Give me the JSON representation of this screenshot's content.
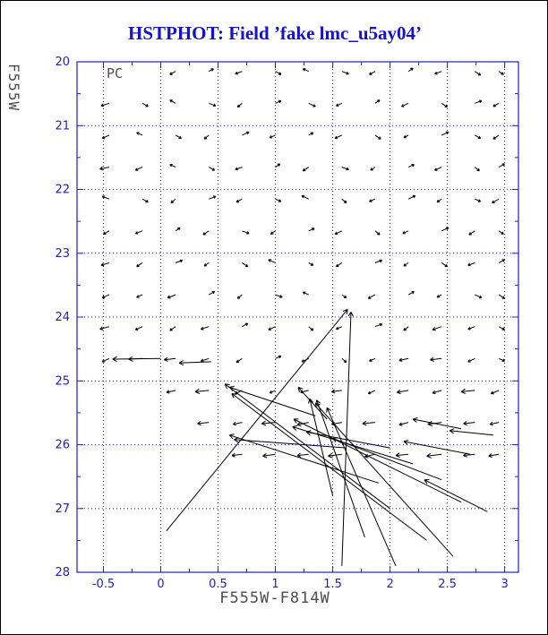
{
  "chart_data": {
    "type": "quiver",
    "title": "HSTPHOT: Field ’fake lmc_u5ay04’",
    "xlabel": "F555W-F814W",
    "ylabel": "F555W",
    "panel_label": "PC",
    "xlim": [
      -0.73,
      3.12
    ],
    "ylim": [
      20,
      28
    ],
    "y_axis_inverted": true,
    "grid": "dotted",
    "colors": {
      "axis": "#2020c0",
      "title": "#1512c8",
      "axis_text": "#4d4d4d",
      "arrow": "#000000"
    },
    "xticks": {
      "values": [
        -0.5,
        0,
        0.5,
        1,
        1.5,
        2,
        2.5,
        3
      ],
      "labels": [
        "-0.5",
        "0",
        "0.5",
        "1",
        "1.5",
        "2",
        "2.5",
        "3"
      ]
    },
    "yticks": {
      "values": [
        20,
        21,
        22,
        23,
        24,
        25,
        26,
        27,
        28
      ],
      "labels": [
        "20",
        "21",
        "22",
        "23",
        "24",
        "25",
        "26",
        "27",
        "28"
      ]
    },
    "grid_x": [
      -0.45,
      -0.16,
      0.13,
      0.42,
      0.71,
      1.0,
      1.29,
      1.58,
      1.87,
      2.16,
      2.45,
      2.74,
      2.95
    ],
    "grid_rows": [
      {
        "y": 20.15,
        "dx": [
          null,
          null,
          -0.05,
          0.04,
          -0.06,
          0.05,
          -0.05,
          0.06,
          -0.05,
          0.04,
          -0.06,
          0.05,
          0.04
        ],
        "dy": [
          null,
          null,
          0.05,
          -0.04,
          0.04,
          0.05,
          -0.04,
          0.04,
          0.05,
          -0.05,
          0.04,
          0.06,
          0.05
        ]
      },
      {
        "y": 20.65,
        "dx": [
          -0.07,
          0.05,
          -0.05,
          0.06,
          -0.04,
          0.05,
          0.06,
          -0.05,
          0.04,
          -0.06,
          0.05,
          0.06,
          -0.05
        ],
        "dy": [
          0.04,
          0.05,
          -0.05,
          0.04,
          0.06,
          -0.04,
          0.05,
          0.04,
          -0.05,
          0.05,
          0.06,
          -0.04,
          0.05
        ]
      },
      {
        "y": 21.15,
        "dx": [
          -0.06,
          -0.05,
          0.05,
          -0.04,
          0.06,
          -0.05,
          0.04,
          -0.06,
          0.05,
          -0.04,
          0.06,
          0.05,
          -0.05
        ],
        "dy": [
          0.05,
          -0.04,
          0.05,
          0.06,
          -0.05,
          0.04,
          -0.04,
          0.05,
          0.06,
          0.04,
          -0.05,
          0.05,
          0.06
        ]
      },
      {
        "y": 21.65,
        "dx": [
          -0.08,
          -0.06,
          -0.05,
          0.05,
          -0.06,
          0.04,
          -0.05,
          0.06,
          -0.04,
          0.05,
          -0.06,
          0.04,
          0.05
        ],
        "dy": [
          0.03,
          0.05,
          -0.04,
          0.05,
          0.04,
          -0.05,
          0.06,
          0.04,
          0.05,
          -0.04,
          0.05,
          0.06,
          -0.05
        ]
      },
      {
        "y": 22.15,
        "dx": [
          -0.06,
          0.05,
          -0.04,
          0.06,
          -0.05,
          0.05,
          -0.06,
          0.04,
          -0.05,
          0.06,
          -0.04,
          0.05,
          -0.06
        ],
        "dy": [
          -0.04,
          0.05,
          0.06,
          -0.04,
          0.05,
          0.04,
          -0.05,
          0.06,
          0.04,
          -0.05,
          0.05,
          0.04,
          0.06
        ]
      },
      {
        "y": 22.65,
        "dx": [
          -0.05,
          -0.06,
          0.04,
          -0.05,
          0.06,
          -0.04,
          0.05,
          -0.06,
          0.04,
          -0.05,
          0.06,
          -0.05,
          0.04
        ],
        "dy": [
          0.05,
          0.04,
          -0.05,
          0.06,
          0.04,
          0.05,
          -0.04,
          0.05,
          0.06,
          0.04,
          -0.05,
          0.06,
          0.05
        ]
      },
      {
        "y": 23.15,
        "dx": [
          -0.07,
          -0.05,
          0.06,
          -0.04,
          0.05,
          -0.06,
          0.04,
          -0.05,
          0.06,
          -0.04,
          0.05,
          -0.06,
          0.05
        ],
        "dy": [
          0.04,
          0.06,
          -0.04,
          0.05,
          0.06,
          -0.05,
          0.04,
          0.06,
          -0.04,
          0.05,
          0.06,
          0.04,
          -0.05
        ]
      },
      {
        "y": 23.65,
        "dx": [
          -0.06,
          -0.05,
          -0.07,
          0.05,
          -0.04,
          0.06,
          -0.05,
          0.04,
          -0.06,
          0.05,
          -0.04,
          0.06,
          0.05
        ],
        "dy": [
          0.05,
          0.04,
          0.05,
          -0.05,
          0.06,
          0.04,
          -0.04,
          0.05,
          0.06,
          -0.05,
          0.04,
          0.05,
          0.06
        ]
      },
      {
        "y": 24.15,
        "dx": [
          -0.08,
          -0.06,
          -0.05,
          -0.07,
          0.05,
          -0.06,
          0.04,
          -0.05,
          0.06,
          -0.04,
          -0.08,
          -0.06,
          0.05
        ],
        "dy": [
          0.04,
          0.05,
          0.06,
          0.04,
          -0.05,
          0.05,
          0.06,
          0.04,
          -0.04,
          0.06,
          0.05,
          0.04,
          0.05
        ]
      },
      {
        "y": 24.65,
        "dx": [
          -0.06,
          -0.12,
          -0.1,
          -0.07,
          -0.05,
          0.05,
          -0.06,
          0.04,
          -0.05,
          -0.08,
          -0.1,
          -0.06,
          0.05
        ],
        "dy": [
          0.05,
          0.01,
          0.02,
          0.04,
          0.06,
          -0.04,
          0.05,
          0.06,
          0.04,
          0.03,
          0.02,
          0.05,
          0.04
        ]
      },
      {
        "y": 25.15,
        "dx": [
          null,
          null,
          -0.08,
          -0.12,
          -0.06,
          -0.05,
          -0.07,
          -0.09,
          -0.06,
          -0.1,
          -0.08,
          -0.12,
          -0.07
        ],
        "dy": [
          null,
          null,
          0.03,
          0.02,
          0.05,
          0.04,
          0.03,
          0.02,
          0.05,
          0.03,
          0.04,
          0.02,
          0.05
        ]
      },
      {
        "y": 25.65,
        "dx": [
          null,
          null,
          null,
          -0.1,
          -0.08,
          -0.12,
          -0.1,
          -0.09,
          -0.11,
          -0.08,
          -0.12,
          -0.1,
          -0.08
        ],
        "dy": [
          null,
          null,
          null,
          0.02,
          0.03,
          0.02,
          0.04,
          0.03,
          0.02,
          0.04,
          0.03,
          0.02,
          0.03
        ]
      },
      {
        "y": 26.15,
        "dx": [
          null,
          null,
          null,
          null,
          -0.09,
          -0.11,
          -0.1,
          -0.12,
          -0.09,
          -0.11,
          -0.13,
          -0.1,
          -0.09
        ],
        "dy": [
          null,
          null,
          null,
          null,
          0.02,
          0.03,
          0.02,
          0.03,
          0.04,
          0.02,
          0.03,
          0.02,
          0.03
        ]
      }
    ],
    "long_arrows": [
      [
        0.05,
        27.35,
        1.63,
        23.88
      ],
      [
        1.58,
        27.9,
        1.66,
        23.92
      ],
      [
        2.55,
        27.75,
        1.35,
        25.35
      ],
      [
        2.05,
        27.9,
        1.45,
        25.42
      ],
      [
        1.78,
        27.45,
        1.36,
        25.3
      ],
      [
        2.0,
        27.0,
        0.56,
        25.05
      ],
      [
        2.32,
        27.5,
        0.62,
        25.2
      ],
      [
        2.62,
        26.9,
        1.16,
        25.6
      ],
      [
        2.85,
        27.05,
        2.3,
        26.55
      ],
      [
        1.9,
        26.6,
        0.6,
        25.85
      ],
      [
        2.2,
        26.3,
        1.15,
        25.72
      ],
      [
        2.45,
        26.55,
        1.5,
        25.9
      ],
      [
        1.62,
        26.05,
        0.64,
        25.92
      ],
      [
        2.0,
        26.05,
        1.27,
        25.8
      ],
      [
        2.9,
        25.85,
        2.52,
        25.78
      ],
      [
        1.5,
        26.8,
        1.3,
        25.28
      ],
      [
        2.7,
        26.15,
        2.12,
        25.95
      ],
      [
        0.0,
        24.65,
        -0.42,
        24.66
      ],
      [
        0.44,
        24.7,
        0.16,
        24.72
      ],
      [
        2.62,
        25.75,
        2.2,
        25.6
      ],
      [
        1.35,
        25.55,
        0.6,
        25.1
      ],
      [
        1.45,
        25.6,
        1.2,
        25.1
      ]
    ]
  }
}
